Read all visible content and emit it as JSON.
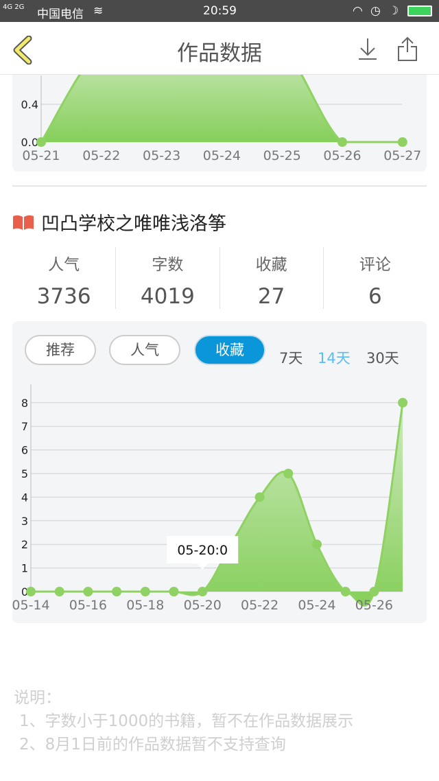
{
  "status_bar": {
    "network": "4G 2G",
    "carrier": "中国电信",
    "time": "20:59",
    "icons": [
      "wifi-icon",
      "headset-icon",
      "alarm-icon",
      "moon-icon",
      "battery-charging-icon"
    ]
  },
  "header": {
    "title": "作品数据",
    "back_icon": "chevron-left-icon",
    "download_icon": "download-icon",
    "share_icon": "share-icon"
  },
  "book": {
    "icon": "book-icon",
    "title": "凹凸学校之唯唯浅洛筝"
  },
  "stats": [
    {
      "label": "人气",
      "value": "3736"
    },
    {
      "label": "字数",
      "value": "4019"
    },
    {
      "label": "收藏",
      "value": "27"
    },
    {
      "label": "评论",
      "value": "6"
    }
  ],
  "filters": {
    "types": [
      "推荐",
      "人气",
      "收藏"
    ],
    "selected_type": "收藏",
    "ranges": [
      "7天",
      "14天",
      "30天"
    ],
    "selected_range": "14天",
    "accent": "#0a96d8",
    "range_accent": "#5bbcf0"
  },
  "notes": {
    "heading": "说明：",
    "lines": [
      "1、字数小于1000的书籍，暂不在作品数据展示",
      "2、8月1日前的作品数据暂不支持查询"
    ]
  },
  "chart_data": [
    {
      "type": "area",
      "x": [
        "05-21",
        "05-22",
        "05-23",
        "05-24",
        "05-25",
        "05-26",
        "05-27"
      ],
      "values": [
        0,
        1,
        1,
        1,
        1,
        0,
        0
      ],
      "y_ticks": [
        "0.0",
        "0.4"
      ],
      "color": "#8fd162"
    },
    {
      "type": "area",
      "x": [
        "05-14",
        "05-15",
        "05-16",
        "05-17",
        "05-18",
        "05-19",
        "05-20",
        "05-21",
        "05-22",
        "05-23",
        "05-24",
        "05-25",
        "05-26",
        "05-27"
      ],
      "x_tick_labels": [
        "05-14",
        "05-16",
        "05-18",
        "05-20",
        "05-22",
        "05-24",
        "05-26"
      ],
      "values": [
        0,
        0,
        0,
        0,
        0,
        0,
        0,
        2,
        4,
        5,
        2,
        0,
        0,
        8
      ],
      "ylim": [
        0,
        8
      ],
      "y_ticks": [
        "0",
        "1",
        "2",
        "3",
        "4",
        "5",
        "6",
        "7",
        "8"
      ],
      "grid": true,
      "tooltip": "05-20:0",
      "color": "#8fd162"
    }
  ]
}
